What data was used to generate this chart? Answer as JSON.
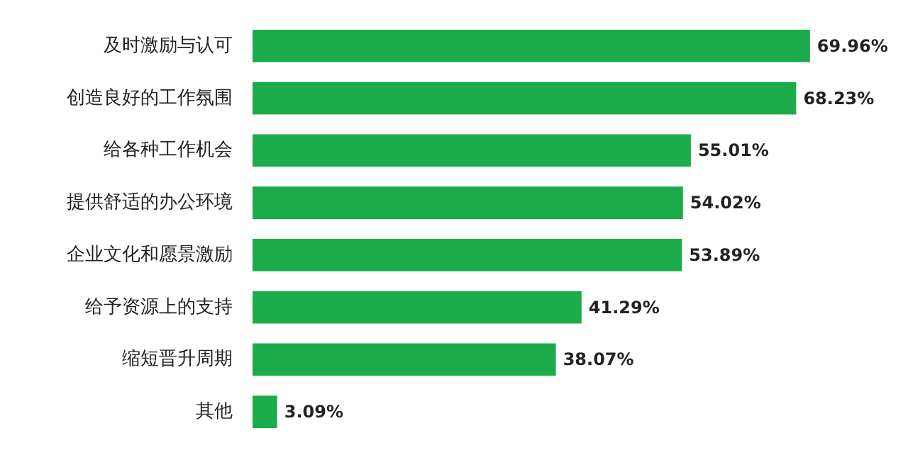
{
  "chart_data": {
    "type": "bar",
    "orientation": "horizontal",
    "categories": [
      "及时激励与认可",
      "创造良好的工作氛围",
      "给各种工作机会",
      "提供舒适的办公环境",
      "企业文化和愿景激励",
      "给予资源上的支持",
      "缩短晋升周期",
      "其他"
    ],
    "values": [
      69.96,
      68.23,
      55.01,
      54.02,
      53.89,
      41.29,
      38.07,
      3.09
    ],
    "value_labels": [
      "69.96%",
      "68.23%",
      "55.01%",
      "54.02%",
      "53.89%",
      "41.29%",
      "38.07%",
      "3.09%"
    ],
    "color": "#1bab4a"
  }
}
